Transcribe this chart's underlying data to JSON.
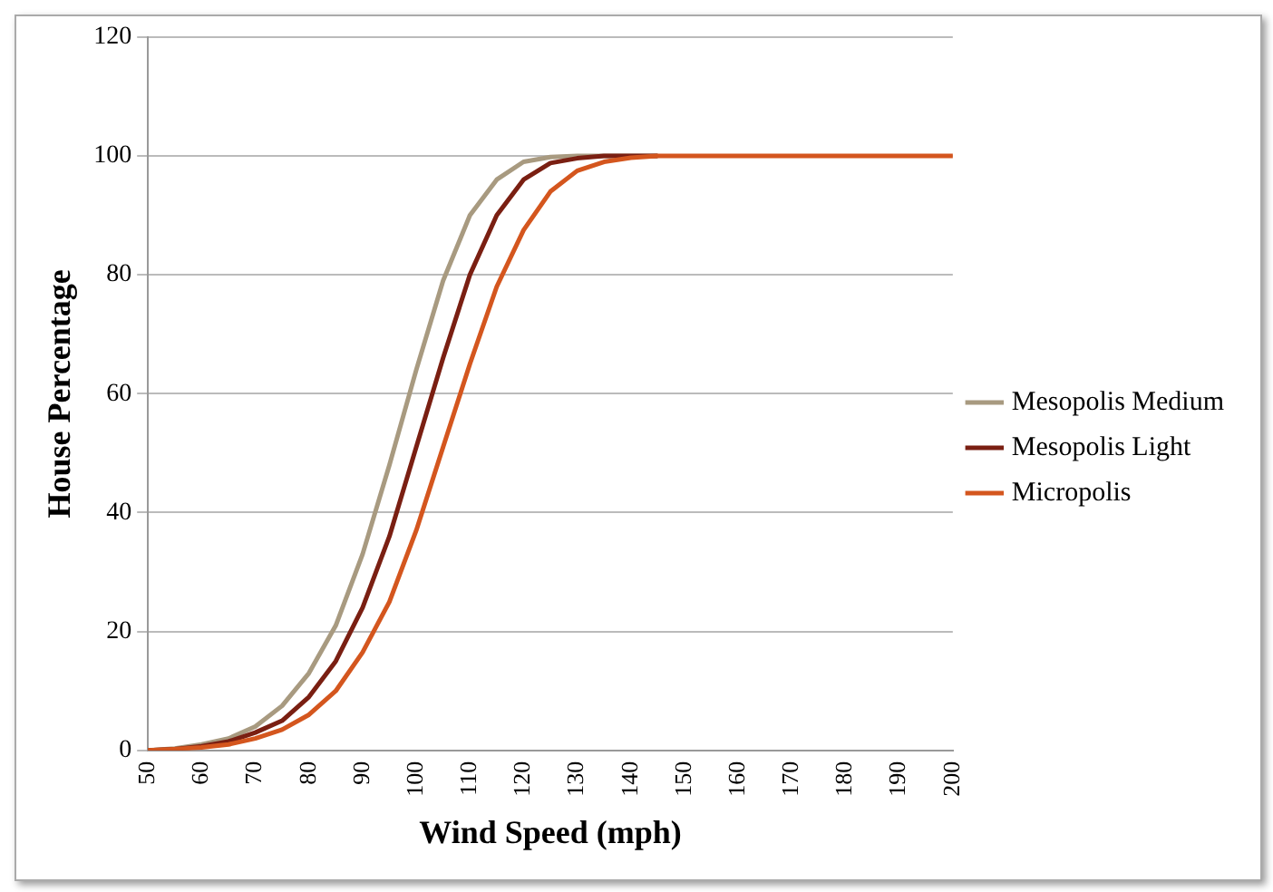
{
  "chart_data": {
    "type": "line",
    "xlabel": "Wind Speed (mph)",
    "ylabel": "House Percentage",
    "categories": [
      "50",
      null,
      "60",
      null,
      "70",
      null,
      "80",
      null,
      "90",
      null,
      "100",
      null,
      "110",
      null,
      "120",
      null,
      "130",
      null,
      "140",
      null,
      "150",
      null,
      "160",
      null,
      "170",
      null,
      "180",
      null,
      "190",
      null,
      "200"
    ],
    "series": [
      {
        "name": "Mesopolis Medium",
        "color": "#a89a80",
        "values": [
          0,
          0.3,
          1,
          2,
          4,
          7.5,
          13,
          21,
          33,
          48,
          64,
          79,
          90,
          96,
          99,
          99.8,
          100,
          100,
          100,
          100,
          null,
          null,
          null,
          null,
          null,
          null,
          null,
          null,
          null,
          null,
          null
        ]
      },
      {
        "name": "Mesopolis Light",
        "color": "#7a1f12",
        "values": [
          0,
          0.2,
          0.7,
          1.5,
          3,
          5,
          9,
          15,
          24,
          36,
          51,
          66,
          80,
          90,
          96,
          98.8,
          99.6,
          100,
          100,
          100,
          null,
          null,
          null,
          null,
          null,
          null,
          null,
          null,
          null,
          null,
          null
        ]
      },
      {
        "name": "Micropolis",
        "color": "#d4561e",
        "values": [
          0,
          0.2,
          0.5,
          1,
          2,
          3.5,
          6,
          10,
          16.5,
          25,
          37,
          51,
          65,
          78,
          87.5,
          94,
          97.5,
          99,
          99.7,
          100,
          100,
          100,
          100,
          100,
          100,
          100,
          100,
          100,
          100,
          100,
          100
        ]
      }
    ],
    "ylim": [
      0,
      120
    ],
    "yticks": [
      0,
      20,
      40,
      60,
      80,
      100,
      120
    ],
    "grid": "y",
    "legend": "right",
    "marker": "none",
    "line_style": "solid"
  }
}
